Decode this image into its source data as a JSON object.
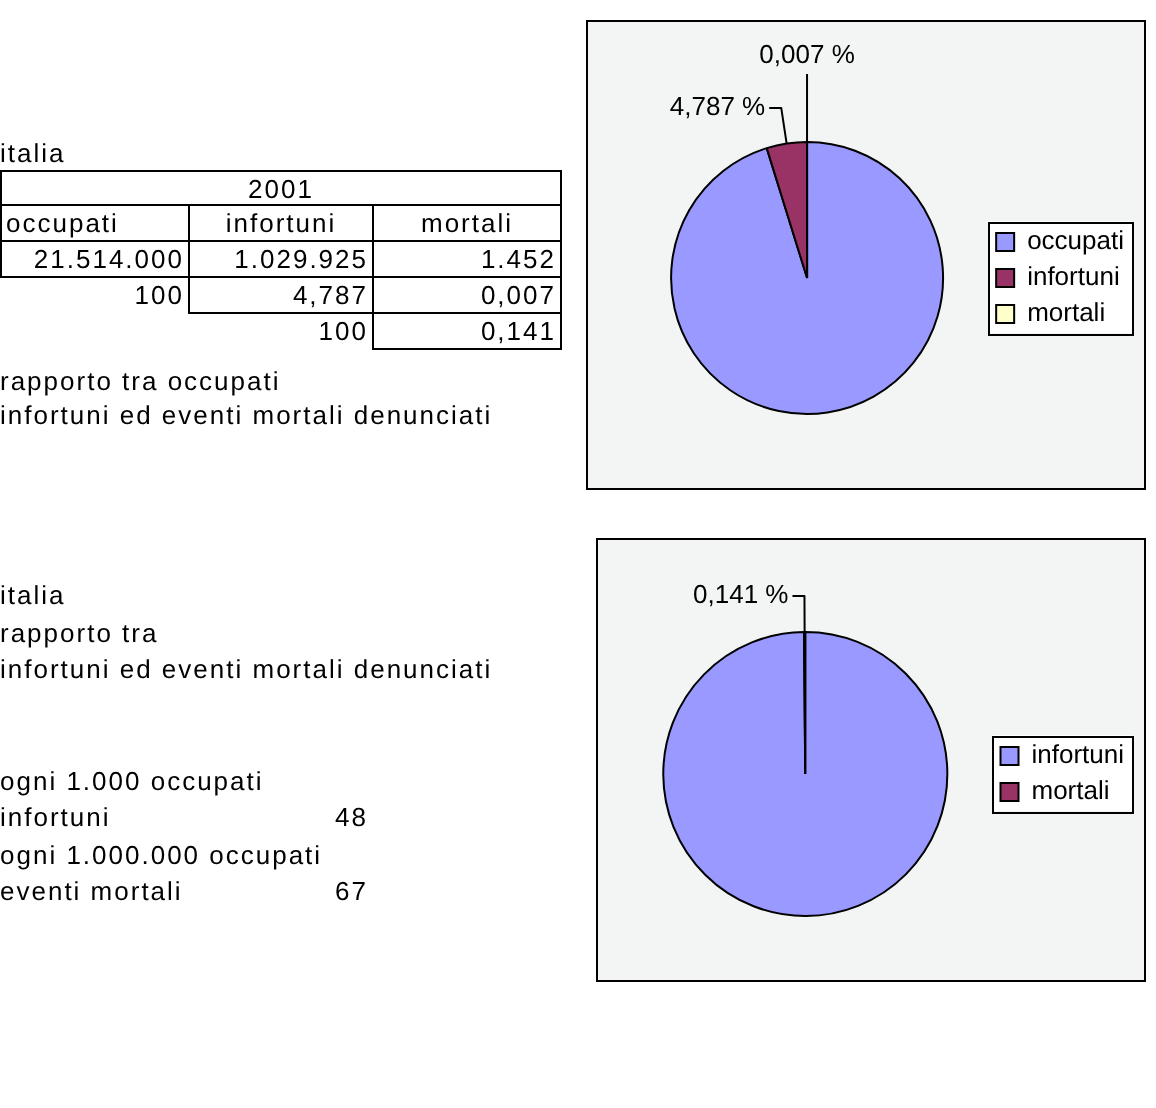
{
  "chart_data": [
    {
      "type": "other",
      "title": "italia",
      "subtitle": "2001",
      "categories": [
        "occupati",
        "infortuni",
        "mortali"
      ],
      "cell_labels": [
        [
          "21.514.000",
          "1.029.925",
          "1.452"
        ],
        [
          "100",
          "4,787",
          "0,007"
        ],
        [
          null,
          "100",
          "0,141"
        ]
      ],
      "annotations": [
        "rapporto tra occupati",
        "infortuni ed eventi mortali denunciati"
      ]
    },
    {
      "type": "pie",
      "categories": [
        "occupati",
        "infortuni",
        "mortali"
      ],
      "values": [
        95.206,
        4.787,
        0.007
      ],
      "colors": [
        "#9999ff",
        "#993366",
        "#ffffcc"
      ],
      "value_labels": [
        null,
        "4,787 %",
        "0,007 %"
      ],
      "legend": "right"
    },
    {
      "type": "other",
      "title": "italia",
      "annotations": [
        "rapporto tra",
        "infortuni ed eventi mortali denunciati",
        "ogni 1.000 occupati",
        "ogni 1.000.000 occupati"
      ],
      "categories": [
        "infortuni",
        "eventi mortali"
      ],
      "values": [
        48,
        67
      ],
      "data_labels": true
    },
    {
      "type": "pie",
      "categories": [
        "infortuni",
        "mortali"
      ],
      "values": [
        99.859,
        0.141
      ],
      "colors": [
        "#9999ff",
        "#993366"
      ],
      "value_labels": [
        null,
        "0,141 %"
      ],
      "legend": "right"
    }
  ]
}
